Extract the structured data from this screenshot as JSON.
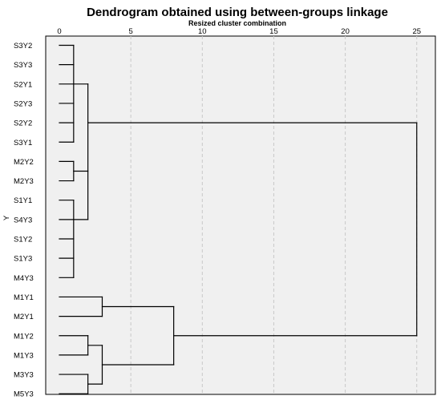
{
  "chart_data": {
    "type": "dendrogram",
    "title": "Dendrogram obtained using between-groups linkage",
    "xlabel": "Resized cluster combination",
    "ylabel": "Y",
    "xlim": [
      0,
      25
    ],
    "xticks": [
      0,
      5,
      10,
      15,
      20,
      25
    ],
    "grid": true,
    "leaves": [
      "S3Y2",
      "S3Y3",
      "S2Y1",
      "S2Y3",
      "S2Y2",
      "S3Y1",
      "M2Y2",
      "M2Y3",
      "S1Y1",
      "S4Y3",
      "S1Y2",
      "S1Y3",
      "M4Y3",
      "M1Y1",
      "M2Y1",
      "M1Y2",
      "M1Y3",
      "M3Y3",
      "M5Y3"
    ],
    "merges": [
      {
        "children": [
          "S3Y2",
          "S3Y3",
          "S2Y1",
          "S2Y3",
          "S2Y2",
          "S3Y1"
        ],
        "height": 1
      },
      {
        "children": [
          "M2Y2",
          "M2Y3"
        ],
        "height": 1
      },
      {
        "children": [
          "S1Y1",
          "S4Y3",
          "S1Y2",
          "S1Y3",
          "M4Y3"
        ],
        "height": 1
      },
      {
        "children": [
          "M2Y2+M2Y3",
          "S1Y1-group"
        ],
        "height": 2
      },
      {
        "children": [
          "S-group-1",
          "M2/S1-group"
        ],
        "height": 2
      },
      {
        "children": [
          "M1Y1",
          "M2Y1"
        ],
        "height": 3
      },
      {
        "children": [
          "M1Y2",
          "M1Y3"
        ],
        "height": 2
      },
      {
        "children": [
          "M3Y3",
          "M5Y3"
        ],
        "height": 2
      },
      {
        "children": [
          "M1Y2+M1Y3",
          "M3Y3+M5Y3"
        ],
        "height": 3
      },
      {
        "children": [
          "M1Y1+M2Y1",
          "M1Y2..M5Y3"
        ],
        "height": 8
      },
      {
        "children": [
          "upper-cluster",
          "lower-cluster"
        ],
        "height": 25
      }
    ],
    "colors": {
      "panel": "#f0f0f0",
      "grid": "#c8c8c8",
      "line": "#000000"
    }
  }
}
